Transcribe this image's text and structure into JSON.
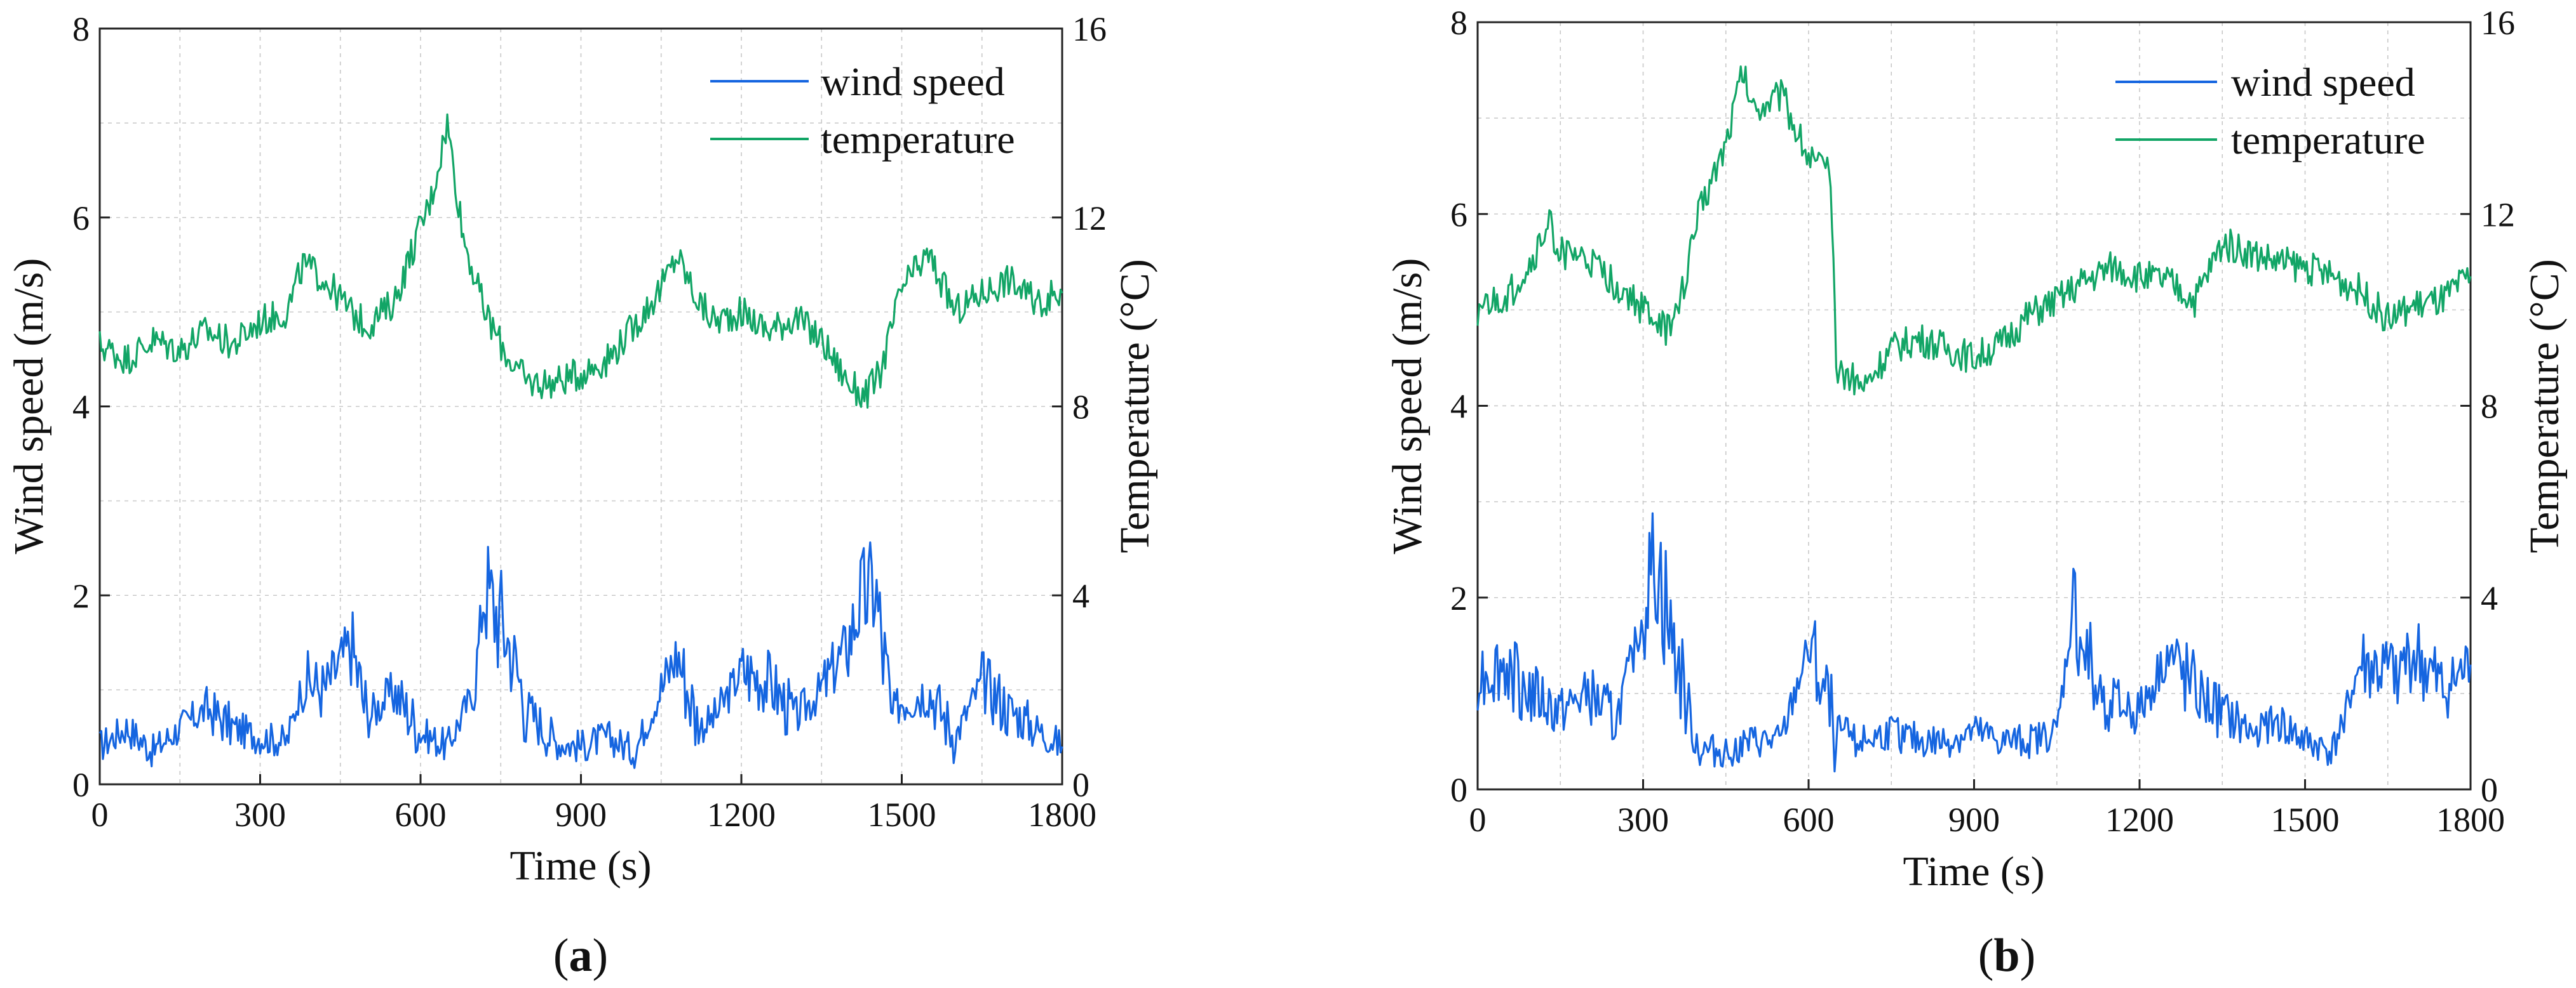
{
  "colors": {
    "wind": "#1565e0",
    "temperature": "#12a566",
    "axis": "#222222",
    "grid": "#c8c8c8"
  },
  "chart_data": [
    {
      "type": "line",
      "panel_label": {
        "open": "(",
        "letter": "a",
        "close": ")"
      },
      "xlabel": "Time (s)",
      "ylabel": "Wind speed (m/s)",
      "y2label": "Temperature (°C)",
      "xlim": [
        0,
        1800
      ],
      "ylim": [
        0,
        8
      ],
      "y2lim": [
        0,
        16
      ],
      "xticks": [
        "0",
        "300",
        "600",
        "900",
        "1200",
        "1500",
        "1800"
      ],
      "yticks": [
        "0",
        "2",
        "4",
        "6",
        "8"
      ],
      "y2ticks": [
        "0",
        "4",
        "8",
        "12",
        "16"
      ],
      "grid": true,
      "legend_position": "top-right",
      "series": [
        {
          "name": "wind speed",
          "axis": "left",
          "color": "#1565e0",
          "x": [
            0,
            50,
            100,
            150,
            200,
            250,
            300,
            350,
            380,
            420,
            470,
            500,
            550,
            600,
            650,
            700,
            720,
            760,
            800,
            850,
            900,
            950,
            1000,
            1050,
            1080,
            1120,
            1150,
            1200,
            1250,
            1300,
            1350,
            1400,
            1420,
            1450,
            1480,
            1500,
            1550,
            1600,
            1650,
            1700,
            1750,
            1800
          ],
          "y": [
            0.4,
            0.6,
            0.35,
            0.6,
            0.8,
            0.6,
            0.5,
            0.45,
            1.1,
            1.0,
            1.5,
            0.7,
            1.0,
            0.55,
            0.4,
            1.0,
            2.1,
            1.6,
            0.8,
            0.45,
            0.4,
            0.5,
            0.35,
            1.0,
            1.4,
            0.6,
            0.7,
            1.2,
            1.1,
            0.7,
            1.0,
            1.5,
            1.9,
            2.1,
            0.7,
            0.9,
            1.0,
            0.5,
            1.1,
            0.8,
            0.6,
            0.4
          ]
        },
        {
          "name": "temperature",
          "axis": "right",
          "color": "#12a566",
          "x": [
            0,
            50,
            100,
            150,
            200,
            250,
            300,
            350,
            380,
            420,
            470,
            500,
            550,
            600,
            620,
            650,
            680,
            720,
            760,
            800,
            850,
            900,
            950,
            1000,
            1050,
            1080,
            1120,
            1150,
            1200,
            1250,
            1300,
            1350,
            1400,
            1430,
            1460,
            1500,
            1550,
            1600,
            1650,
            1700,
            1750,
            1800
          ],
          "y": [
            9.3,
            9.0,
            9.4,
            9.2,
            9.6,
            9.3,
            9.8,
            10.0,
            11.0,
            10.7,
            10.0,
            9.7,
            10.2,
            11.8,
            12.4,
            14.0,
            11.6,
            10.0,
            9.1,
            8.5,
            8.5,
            8.7,
            9.0,
            9.7,
            10.5,
            11.2,
            10.2,
            9.8,
            10.0,
            9.6,
            9.9,
            9.4,
            8.5,
            8.2,
            8.7,
            10.5,
            11.2,
            10.0,
            10.4,
            10.7,
            10.2,
            10.4
          ]
        }
      ]
    },
    {
      "type": "line",
      "panel_label": {
        "open": "(",
        "letter": "b",
        "close": ")"
      },
      "xlabel": "Time (s)",
      "ylabel": "Wind speed (m/s)",
      "y2label": "Temperature (°C)",
      "xlim": [
        0,
        1800
      ],
      "ylim": [
        0,
        8
      ],
      "y2lim": [
        0,
        16
      ],
      "xticks": [
        "0",
        "300",
        "600",
        "900",
        "1200",
        "1500",
        "1800"
      ],
      "yticks": [
        "0",
        "2",
        "4",
        "6",
        "8"
      ],
      "y2ticks": [
        "0",
        "4",
        "8",
        "12",
        "16"
      ],
      "grid": true,
      "legend_position": "top-right",
      "series": [
        {
          "name": "wind speed",
          "axis": "left",
          "color": "#1565e0",
          "x": [
            0,
            50,
            100,
            150,
            200,
            250,
            300,
            320,
            350,
            380,
            400,
            450,
            500,
            550,
            600,
            650,
            700,
            750,
            800,
            850,
            900,
            950,
            1000,
            1050,
            1080,
            1120,
            1150,
            1200,
            1250,
            1300,
            1350,
            1400,
            1450,
            1500,
            1550,
            1600,
            1650,
            1700,
            1750,
            1800
          ],
          "y": [
            1.2,
            1.3,
            1.0,
            0.8,
            1.0,
            0.7,
            1.8,
            2.5,
            1.6,
            0.9,
            0.4,
            0.4,
            0.5,
            0.5,
            1.5,
            0.6,
            0.5,
            0.6,
            0.5,
            0.5,
            0.6,
            0.5,
            0.5,
            0.6,
            1.9,
            1.0,
            0.9,
            0.8,
            1.4,
            1.0,
            0.8,
            0.6,
            0.7,
            0.5,
            0.4,
            1.3,
            1.2,
            1.4,
            1.0,
            1.3
          ]
        },
        {
          "name": "temperature",
          "axis": "right",
          "color": "#12a566",
          "x": [
            0,
            50,
            100,
            130,
            150,
            200,
            250,
            300,
            350,
            380,
            400,
            450,
            480,
            500,
            550,
            600,
            640,
            650,
            680,
            700,
            750,
            800,
            850,
            900,
            950,
            1000,
            1050,
            1100,
            1150,
            1200,
            1250,
            1300,
            1350,
            1400,
            1450,
            1500,
            1550,
            1600,
            1650,
            1700,
            1750,
            1800
          ],
          "y": [
            10.0,
            10.2,
            11.0,
            11.8,
            11.2,
            11.0,
            10.5,
            10.0,
            9.5,
            10.8,
            12.0,
            13.5,
            15.0,
            14.2,
            14.5,
            13.2,
            12.8,
            8.8,
            8.6,
            8.4,
            9.2,
            9.4,
            9.2,
            9.0,
            9.3,
            9.9,
            10.2,
            10.6,
            10.9,
            10.7,
            10.6,
            10.2,
            11.4,
            11.2,
            11.0,
            10.9,
            10.7,
            10.4,
            9.8,
            10.1,
            10.2,
            10.7
          ]
        }
      ]
    }
  ]
}
